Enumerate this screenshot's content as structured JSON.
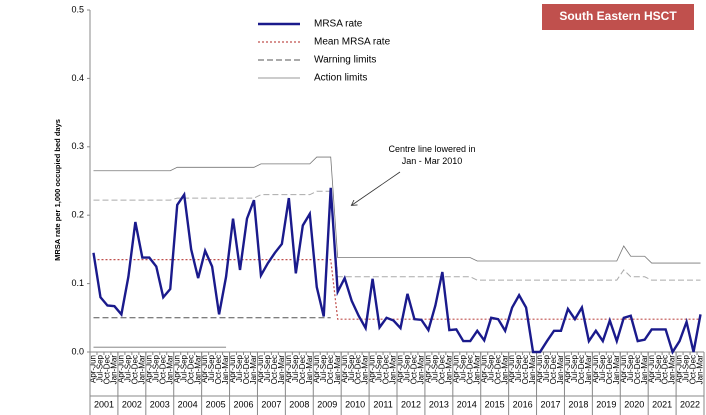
{
  "chart_data": {
    "type": "control",
    "badge": "South Eastern HSCT",
    "badge_color": "#c0504d",
    "ylabel": "MRSA rate per 1,000 occupied bed days",
    "annotation": "Centre line lowered in\nJan - Mar 2010",
    "ylim": [
      0,
      0.5
    ],
    "yticks": [
      {
        "value": 0,
        "label": "0.0"
      },
      0.1,
      0.2,
      0.3,
      0.4,
      0.5
    ],
    "years": [
      "2001",
      "2002",
      "2003",
      "2004",
      "2005",
      "2006",
      "2007",
      "2008",
      "2009",
      "2010",
      "2011",
      "2012",
      "2013",
      "2014",
      "2015",
      "2016",
      "2017",
      "2018",
      "2019",
      "2020",
      "2021",
      "2022"
    ],
    "categories": [
      "Apr-Jun",
      "Jul-Sep",
      "Oct-Dec",
      "Jan-Mar",
      "Apr-Jun",
      "Jul-Sep",
      "Oct-Dec",
      "Jan-Mar",
      "Apr-Jun",
      "Jul-Sep",
      "Oct-Dec",
      "Jan-Mar",
      "Apr-Jun",
      "Jul-Sep",
      "Oct-Dec",
      "Jan-Mar",
      "Apr-Jun",
      "Jul-Sep",
      "Oct-Dec",
      "Jan-Mar",
      "Apr-Jun",
      "Jul-Sep",
      "Oct-Dec",
      "Jan-Mar",
      "Apr-Jun",
      "Jul-Sep",
      "Oct-Dec",
      "Jan-Mar",
      "Apr-Jun",
      "Jul-Sep",
      "Oct-Dec",
      "Jan-Mar",
      "Apr-Jun",
      "Jul-Sep",
      "Oct-Dec",
      "Jan-Mar",
      "Apr-Jun",
      "Jul-Sep",
      "Oct-Dec",
      "Jan-Mar",
      "Apr-Jun",
      "Jul-Sep",
      "Oct-Dec",
      "Jan-Mar",
      "Apr-Jun",
      "Jul-Sep",
      "Oct-Dec",
      "Jan-Mar",
      "Apr-Jun",
      "Jul-Sep",
      "Oct-Dec",
      "Jan-Mar",
      "Apr-Jun",
      "Jul-Sep",
      "Oct-Dec",
      "Jan-Mar",
      "Apr-Jun",
      "Jul-Sep",
      "Oct-Dec",
      "Jan-Mar",
      "Apr-Jun",
      "Jul-Sep",
      "Oct-Dec",
      "Jan-Mar",
      "Apr-Jun",
      "Jul-Sep",
      "Oct-Dec",
      "Jan-Mar",
      "Apr-Jun",
      "Jul-Sep",
      "Oct-Dec",
      "Jan-Mar",
      "Apr-Jun",
      "Jul-Sep",
      "Oct-Dec",
      "Jan-Mar",
      "Apr-Jun",
      "Jul-Sep",
      "Oct-Dec",
      "Jan-Mar",
      "Apr-Jun",
      "Jul-Sep",
      "Oct-Dec",
      "Jan-Mar",
      "Apr-Jun",
      "Jul-Sep",
      "Oct-Dec",
      "Jan-Mar"
    ],
    "series": [
      {
        "name": "MRSA rate",
        "color": "#1a1a8c",
        "style": "solid",
        "width": 2.4,
        "values": [
          0.145,
          0.08,
          0.068,
          0.067,
          0.055,
          0.11,
          0.19,
          0.138,
          0.138,
          0.125,
          0.08,
          0.092,
          0.215,
          0.23,
          0.15,
          0.108,
          0.148,
          0.125,
          0.055,
          0.11,
          0.195,
          0.12,
          0.195,
          0.222,
          0.112,
          0.13,
          0.145,
          0.158,
          0.225,
          0.115,
          0.185,
          0.202,
          0.095,
          0.052,
          0.24,
          0.088,
          0.108,
          0.075,
          0.053,
          0.035,
          0.107,
          0.036,
          0.05,
          0.046,
          0.035,
          0.085,
          0.048,
          0.047,
          0.032,
          0.068,
          0.117,
          0.032,
          0.033,
          0.016,
          0.016,
          0.031,
          0.017,
          0.05,
          0.048,
          0.031,
          0.065,
          0.083,
          0.065,
          0.0,
          0.0,
          0.016,
          0.031,
          0.031,
          0.063,
          0.048,
          0.065,
          0.016,
          0.031,
          0.016,
          0.046,
          0.016,
          0.05,
          0.053,
          0.016,
          0.018,
          0.033,
          0.033,
          0.033,
          0.0,
          0.016,
          0.044,
          0.0,
          0.055
        ]
      },
      {
        "name": "Mean MRSA rate",
        "color": "#c0504d",
        "style": "dotted",
        "width": 1.2,
        "values": [
          0.135,
          0.135,
          0.135,
          0.135,
          0.135,
          0.135,
          0.135,
          0.135,
          0.135,
          0.135,
          0.135,
          0.135,
          0.135,
          0.135,
          0.135,
          0.135,
          0.135,
          0.135,
          0.135,
          0.135,
          0.135,
          0.135,
          0.135,
          0.135,
          0.135,
          0.135,
          0.135,
          0.135,
          0.135,
          0.135,
          0.135,
          0.135,
          0.135,
          0.135,
          0.135,
          0.048,
          0.048,
          0.048,
          0.048,
          0.048,
          0.048,
          0.048,
          0.048,
          0.048,
          0.048,
          0.048,
          0.048,
          0.048,
          0.048,
          0.048,
          0.048,
          0.048,
          0.048,
          0.048,
          0.048,
          0.048,
          0.048,
          0.048,
          0.048,
          0.048,
          0.048,
          0.048,
          0.048,
          0.048,
          0.048,
          0.048,
          0.048,
          0.048,
          0.048,
          0.048,
          0.048,
          0.048,
          0.048,
          0.048,
          0.048,
          0.048,
          0.048,
          0.048,
          0.048,
          0.048,
          0.048,
          0.048,
          0.048,
          0.048,
          0.048,
          0.048,
          0.048,
          0.048
        ]
      },
      {
        "name": "Warning limits",
        "color": "#555555",
        "upper_color": "#aaaaaa",
        "style": "dashed",
        "width": 1,
        "upper": [
          0.222,
          0.222,
          0.222,
          0.222,
          0.222,
          0.222,
          0.222,
          0.222,
          0.222,
          0.222,
          0.222,
          0.222,
          0.225,
          0.225,
          0.225,
          0.225,
          0.225,
          0.225,
          0.225,
          0.225,
          0.225,
          0.225,
          0.225,
          0.225,
          0.23,
          0.23,
          0.23,
          0.23,
          0.23,
          0.23,
          0.23,
          0.23,
          0.235,
          0.235,
          0.235,
          0.11,
          0.11,
          0.11,
          0.11,
          0.11,
          0.11,
          0.11,
          0.11,
          0.11,
          0.11,
          0.11,
          0.11,
          0.11,
          0.11,
          0.11,
          0.11,
          0.11,
          0.11,
          0.11,
          0.11,
          0.105,
          0.105,
          0.105,
          0.105,
          0.105,
          0.105,
          0.105,
          0.105,
          0.105,
          0.105,
          0.105,
          0.105,
          0.105,
          0.105,
          0.105,
          0.105,
          0.105,
          0.105,
          0.105,
          0.105,
          0.105,
          0.12,
          0.11,
          0.11,
          0.11,
          0.105,
          0.105,
          0.105,
          0.105,
          0.105,
          0.105,
          0.105,
          0.105
        ],
        "lower": [
          0.05,
          0.05,
          0.05,
          0.05,
          0.05,
          0.05,
          0.05,
          0.05,
          0.05,
          0.05,
          0.05,
          0.05,
          0.05,
          0.05,
          0.05,
          0.05,
          0.05,
          0.05,
          0.05,
          0.05,
          0.05,
          0.05,
          0.05,
          0.05,
          0.05,
          0.05,
          0.05,
          0.05,
          0.05,
          0.05,
          0.05,
          0.05,
          0.05,
          0.05,
          0.05,
          null,
          null,
          null,
          null,
          null,
          null,
          null,
          null,
          null,
          null,
          null,
          null,
          null,
          null,
          null,
          null,
          null,
          null,
          null,
          null,
          null,
          null,
          null,
          null,
          null,
          null,
          null,
          null,
          null,
          null,
          null,
          null,
          null,
          null,
          null,
          null,
          null,
          null,
          null,
          null,
          null,
          null,
          null,
          null,
          null,
          null,
          null,
          null,
          null,
          null,
          null,
          null,
          null
        ]
      },
      {
        "name": "Action limits",
        "color": "#777777",
        "upper_color": "#777777",
        "style": "solid",
        "width": 0.8,
        "upper": [
          0.265,
          0.265,
          0.265,
          0.265,
          0.265,
          0.265,
          0.265,
          0.265,
          0.265,
          0.265,
          0.265,
          0.265,
          0.27,
          0.27,
          0.27,
          0.27,
          0.27,
          0.27,
          0.27,
          0.27,
          0.27,
          0.27,
          0.27,
          0.27,
          0.275,
          0.275,
          0.275,
          0.275,
          0.275,
          0.275,
          0.275,
          0.275,
          0.285,
          0.285,
          0.285,
          0.138,
          0.138,
          0.138,
          0.138,
          0.138,
          0.138,
          0.138,
          0.138,
          0.138,
          0.138,
          0.138,
          0.138,
          0.138,
          0.138,
          0.138,
          0.138,
          0.138,
          0.138,
          0.138,
          0.138,
          0.133,
          0.133,
          0.133,
          0.133,
          0.133,
          0.133,
          0.133,
          0.133,
          0.133,
          0.133,
          0.133,
          0.133,
          0.133,
          0.133,
          0.133,
          0.133,
          0.133,
          0.133,
          0.133,
          0.133,
          0.133,
          0.155,
          0.14,
          0.14,
          0.14,
          0.13,
          0.13,
          0.13,
          0.13,
          0.13,
          0.13,
          0.13,
          0.13
        ],
        "lower": [
          0.007,
          0.007,
          0.007,
          0.007,
          0.007,
          0.007,
          0.007,
          0.007,
          0.007,
          0.007,
          0.007,
          0.007,
          0.007,
          0.007,
          0.007,
          0.007,
          0.007,
          0.007,
          0.007,
          0.007,
          null,
          null,
          null,
          null,
          null,
          null,
          null,
          null,
          null,
          null,
          null,
          null,
          null,
          null,
          null,
          null,
          null,
          null,
          null,
          null,
          null,
          null,
          null,
          null,
          null,
          null,
          null,
          null,
          null,
          null,
          null,
          null,
          null,
          null,
          null,
          null,
          null,
          null,
          null,
          null,
          null,
          null,
          null,
          null,
          null,
          null,
          null,
          null,
          null,
          null,
          null,
          null,
          null,
          null,
          null,
          null,
          null,
          null,
          null,
          null,
          null,
          null,
          null,
          null,
          null,
          null,
          null,
          null
        ]
      }
    ]
  }
}
